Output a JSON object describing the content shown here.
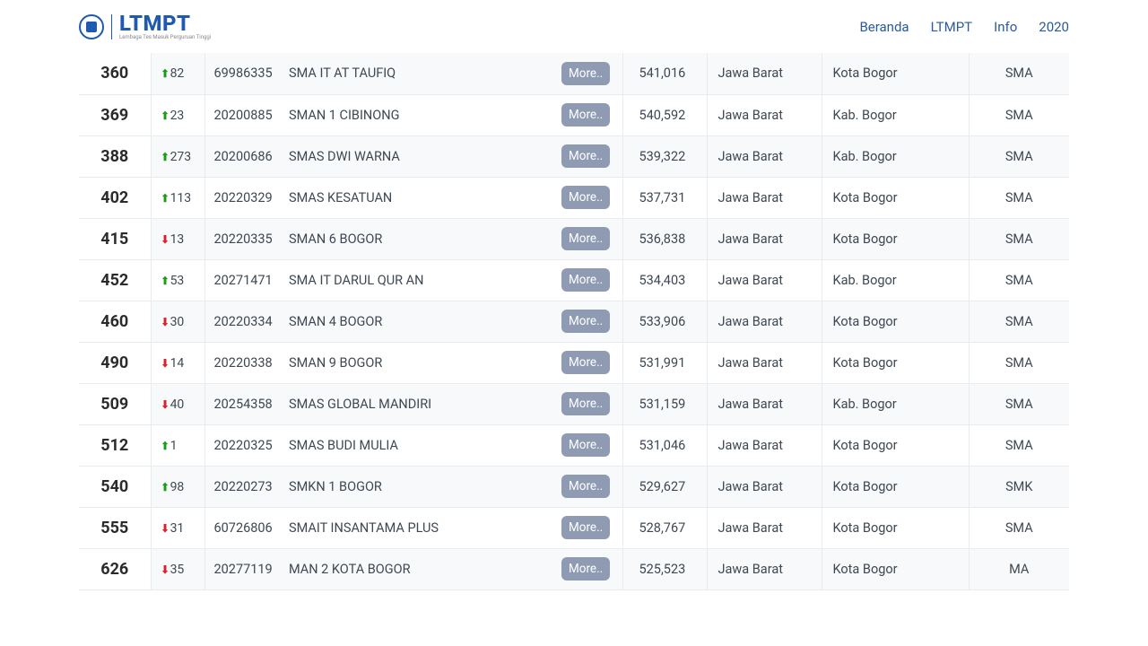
{
  "header": {
    "logo_text": "LTMPT",
    "logo_subtitle": "Lembaga Tes Masuk Perguruan Tinggi",
    "nav": [
      {
        "label": "Beranda"
      },
      {
        "label": "LTMPT"
      },
      {
        "label": "Info"
      },
      {
        "label": "2020"
      }
    ]
  },
  "table": {
    "more_label": "More..",
    "rows": [
      {
        "rank": "360",
        "dir": "up",
        "delta": "82",
        "npsn": "69986335",
        "name": "SMA IT AT TAUFIQ",
        "score": "541,016",
        "prov": "Jawa Barat",
        "city": "Kota Bogor",
        "type": "SMA"
      },
      {
        "rank": "369",
        "dir": "up",
        "delta": "23",
        "npsn": "20200885",
        "name": "SMAN 1 CIBINONG",
        "score": "540,592",
        "prov": "Jawa Barat",
        "city": "Kab. Bogor",
        "type": "SMA"
      },
      {
        "rank": "388",
        "dir": "up",
        "delta": "273",
        "npsn": "20200686",
        "name": "SMAS DWI WARNA",
        "score": "539,322",
        "prov": "Jawa Barat",
        "city": "Kab. Bogor",
        "type": "SMA"
      },
      {
        "rank": "402",
        "dir": "up",
        "delta": "113",
        "npsn": "20220329",
        "name": "SMAS KESATUAN",
        "score": "537,731",
        "prov": "Jawa Barat",
        "city": "Kota Bogor",
        "type": "SMA"
      },
      {
        "rank": "415",
        "dir": "down",
        "delta": "13",
        "npsn": "20220335",
        "name": "SMAN 6 BOGOR",
        "score": "536,838",
        "prov": "Jawa Barat",
        "city": "Kota Bogor",
        "type": "SMA"
      },
      {
        "rank": "452",
        "dir": "up",
        "delta": "53",
        "npsn": "20271471",
        "name": "SMA IT DARUL QUR AN",
        "score": "534,403",
        "prov": "Jawa Barat",
        "city": "Kab. Bogor",
        "type": "SMA"
      },
      {
        "rank": "460",
        "dir": "down",
        "delta": "30",
        "npsn": "20220334",
        "name": "SMAN 4 BOGOR",
        "score": "533,906",
        "prov": "Jawa Barat",
        "city": "Kota Bogor",
        "type": "SMA"
      },
      {
        "rank": "490",
        "dir": "down",
        "delta": "14",
        "npsn": "20220338",
        "name": "SMAN 9 BOGOR",
        "score": "531,991",
        "prov": "Jawa Barat",
        "city": "Kota Bogor",
        "type": "SMA"
      },
      {
        "rank": "509",
        "dir": "down",
        "delta": "40",
        "npsn": "20254358",
        "name": "SMAS GLOBAL MANDIRI",
        "score": "531,159",
        "prov": "Jawa Barat",
        "city": "Kab. Bogor",
        "type": "SMA"
      },
      {
        "rank": "512",
        "dir": "up",
        "delta": "1",
        "npsn": "20220325",
        "name": "SMAS BUDI MULIA",
        "score": "531,046",
        "prov": "Jawa Barat",
        "city": "Kota Bogor",
        "type": "SMA"
      },
      {
        "rank": "540",
        "dir": "up",
        "delta": "98",
        "npsn": "20220273",
        "name": "SMKN 1 BOGOR",
        "score": "529,627",
        "prov": "Jawa Barat",
        "city": "Kota Bogor",
        "type": "SMK"
      },
      {
        "rank": "555",
        "dir": "down",
        "delta": "31",
        "npsn": "60726806",
        "name": "SMAIT INSANTAMA PLUS",
        "score": "528,767",
        "prov": "Jawa Barat",
        "city": "Kota Bogor",
        "type": "SMA"
      },
      {
        "rank": "626",
        "dir": "down",
        "delta": "35",
        "npsn": "20277119",
        "name": "MAN 2 KOTA BOGOR",
        "score": "525,523",
        "prov": "Jawa Barat",
        "city": "Kota Bogor",
        "type": "MA"
      }
    ]
  },
  "colors": {
    "brand": "#1e5bb0",
    "nav_link": "#2b5b9b",
    "up": "#1a9b1a",
    "down": "#d9212c",
    "btn_bg": "#8e9bb2",
    "row_alt": "#f8f9fa",
    "border": "#e9ecef",
    "text": "#3d4852"
  }
}
